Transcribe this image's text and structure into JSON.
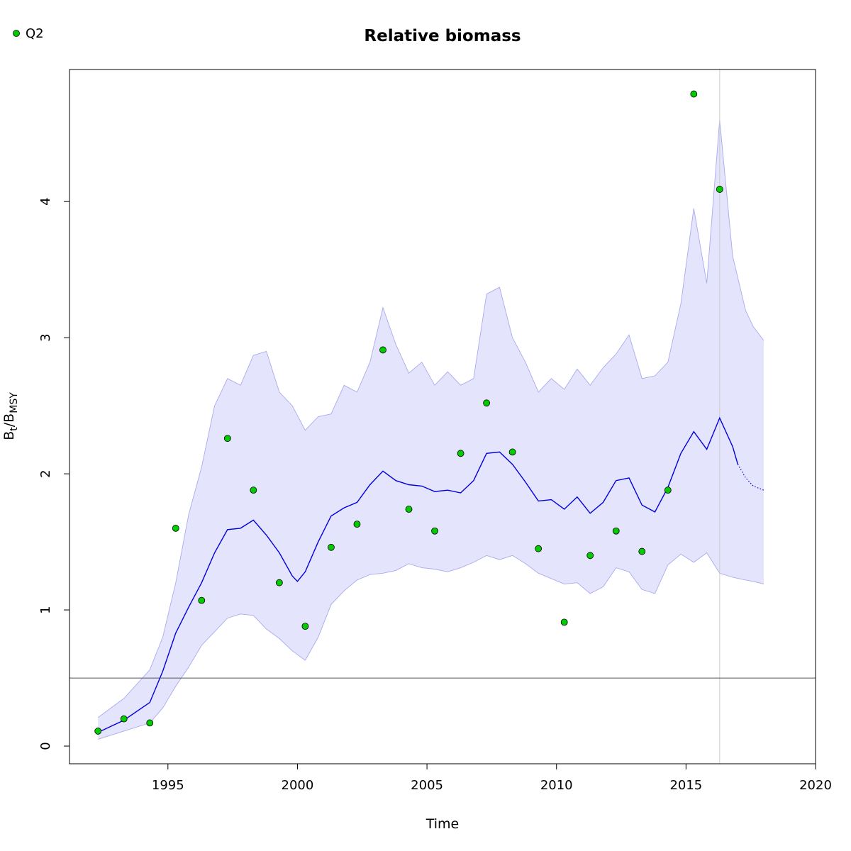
{
  "chart_data": {
    "type": "line",
    "title": "Relative biomass",
    "xlabel": "Time",
    "ylabel": "B_t/B_MSY",
    "ylabel_parts": {
      "main_a": "B",
      "sub_a": "t",
      "slash": "/",
      "main_b": "B",
      "sub_b": "MSY"
    },
    "xlim": [
      1991.2,
      2020
    ],
    "ylim": [
      -0.13,
      4.97
    ],
    "x_ticks": [
      1995,
      2000,
      2005,
      2010,
      2015,
      2020
    ],
    "x_tick_labels": [
      "1995",
      "2000",
      "2005",
      "2010",
      "2015",
      "2020"
    ],
    "y_ticks": [
      0,
      1,
      2,
      3,
      4
    ],
    "y_tick_labels": [
      "0",
      "1",
      "2",
      "3",
      "4"
    ],
    "grid": false,
    "legend": {
      "position": "top-left",
      "entries": [
        {
          "label": "Q2",
          "color": "#00cc00"
        }
      ]
    },
    "reference_line_y": 0.5,
    "vertical_line_x": 2016.3,
    "colors": {
      "estimate_line": "#0000dd",
      "ci_fill": "#e4e4fc",
      "ci_edge": "#aaaaee",
      "observations": "#00cc00",
      "reference_line": "#555555",
      "vertical_line": "#cccccc"
    },
    "series": [
      {
        "name": "Q2",
        "kind": "observations",
        "x": [
          1992.3,
          1993.3,
          1994.3,
          1995.3,
          1996.3,
          1997.3,
          1998.3,
          1999.3,
          2000.3,
          2001.3,
          2002.3,
          2003.3,
          2004.3,
          2005.3,
          2006.3,
          2007.3,
          2008.3,
          2009.3,
          2010.3,
          2011.3,
          2012.3,
          2013.3,
          2014.3,
          2015.3,
          2016.3
        ],
        "values": [
          0.11,
          0.2,
          0.17,
          1.6,
          1.07,
          2.26,
          1.88,
          1.2,
          0.88,
          1.46,
          1.63,
          2.91,
          1.74,
          1.58,
          2.15,
          2.52,
          2.16,
          1.45,
          0.91,
          1.4,
          1.58,
          1.43,
          1.88,
          4.79,
          4.09
        ]
      },
      {
        "kind": "estimate",
        "x": [
          1992.3,
          1993.3,
          1994.3,
          1994.8,
          1995.3,
          1995.8,
          1996.3,
          1996.8,
          1997.3,
          1997.8,
          1998.3,
          1998.8,
          1999.3,
          1999.8,
          2000.0,
          2000.3,
          2000.8,
          2001.3,
          2001.8,
          2002.3,
          2002.8,
          2003.3,
          2003.8,
          2004.3,
          2004.8,
          2005.3,
          2005.8,
          2006.3,
          2006.8,
          2007.3,
          2007.8,
          2008.3,
          2008.8,
          2009.3,
          2009.8,
          2010.3,
          2010.8,
          2011.3,
          2011.8,
          2012.3,
          2012.8,
          2013.3,
          2013.8,
          2014.3,
          2014.8,
          2015.3,
          2015.8,
          2016.3,
          2016.8,
          2017.0
        ],
        "values": [
          0.1,
          0.19,
          0.32,
          0.55,
          0.83,
          1.02,
          1.2,
          1.42,
          1.59,
          1.6,
          1.66,
          1.55,
          1.42,
          1.25,
          1.21,
          1.28,
          1.5,
          1.69,
          1.75,
          1.79,
          1.92,
          2.02,
          1.95,
          1.92,
          1.91,
          1.87,
          1.88,
          1.86,
          1.95,
          2.15,
          2.16,
          2.07,
          1.94,
          1.8,
          1.81,
          1.74,
          1.83,
          1.71,
          1.79,
          1.95,
          1.97,
          1.77,
          1.72,
          1.9,
          2.15,
          2.31,
          2.18,
          2.41,
          2.2,
          2.07
        ]
      },
      {
        "kind": "forecast",
        "x": [
          2017.0,
          2017.3,
          2017.6,
          2018.0
        ],
        "values": [
          2.07,
          1.97,
          1.91,
          1.88
        ]
      },
      {
        "kind": "ci_upper",
        "x": [
          1992.3,
          1993.3,
          1994.3,
          1994.8,
          1995.3,
          1995.8,
          1996.3,
          1996.8,
          1997.3,
          1997.8,
          1998.3,
          1998.8,
          1999.3,
          1999.8,
          2000.3,
          2000.8,
          2001.3,
          2001.8,
          2002.3,
          2002.8,
          2003.3,
          2003.8,
          2004.3,
          2004.8,
          2005.3,
          2005.8,
          2006.3,
          2006.8,
          2007.3,
          2007.8,
          2008.3,
          2008.8,
          2009.3,
          2009.8,
          2010.3,
          2010.8,
          2011.3,
          2011.8,
          2012.3,
          2012.8,
          2013.3,
          2013.8,
          2014.3,
          2014.8,
          2015.3,
          2015.8,
          2016.3,
          2016.8,
          2017.3,
          2017.6,
          2018.0
        ],
        "values": [
          0.21,
          0.35,
          0.56,
          0.8,
          1.2,
          1.7,
          2.05,
          2.5,
          2.7,
          2.65,
          2.87,
          2.9,
          2.6,
          2.5,
          2.32,
          2.42,
          2.44,
          2.65,
          2.6,
          2.82,
          3.22,
          2.95,
          2.74,
          2.82,
          2.65,
          2.75,
          2.65,
          2.7,
          3.32,
          3.37,
          3.0,
          2.82,
          2.6,
          2.7,
          2.62,
          2.77,
          2.65,
          2.78,
          2.88,
          3.02,
          2.7,
          2.72,
          2.82,
          3.25,
          3.95,
          3.4,
          4.6,
          3.6,
          3.2,
          3.08,
          2.98
        ]
      },
      {
        "kind": "ci_lower",
        "x": [
          1992.3,
          1993.3,
          1994.3,
          1994.8,
          1995.3,
          1995.8,
          1996.3,
          1996.8,
          1997.3,
          1997.8,
          1998.3,
          1998.8,
          1999.3,
          1999.8,
          2000.3,
          2000.8,
          2001.3,
          2001.8,
          2002.3,
          2002.8,
          2003.3,
          2003.8,
          2004.3,
          2004.8,
          2005.3,
          2005.8,
          2006.3,
          2006.8,
          2007.3,
          2007.8,
          2008.3,
          2008.8,
          2009.3,
          2009.8,
          2010.3,
          2010.8,
          2011.3,
          2011.8,
          2012.3,
          2012.8,
          2013.3,
          2013.8,
          2014.3,
          2014.8,
          2015.3,
          2015.8,
          2016.3,
          2016.8,
          2017.3,
          2017.6,
          2018.0
        ],
        "values": [
          0.05,
          0.11,
          0.17,
          0.28,
          0.44,
          0.58,
          0.74,
          0.84,
          0.94,
          0.97,
          0.96,
          0.86,
          0.79,
          0.7,
          0.63,
          0.8,
          1.04,
          1.14,
          1.22,
          1.26,
          1.27,
          1.29,
          1.34,
          1.31,
          1.3,
          1.28,
          1.31,
          1.35,
          1.4,
          1.37,
          1.4,
          1.34,
          1.27,
          1.23,
          1.19,
          1.2,
          1.12,
          1.17,
          1.31,
          1.28,
          1.15,
          1.12,
          1.33,
          1.41,
          1.35,
          1.42,
          1.27,
          1.24,
          1.22,
          1.21,
          1.19
        ]
      }
    ]
  }
}
